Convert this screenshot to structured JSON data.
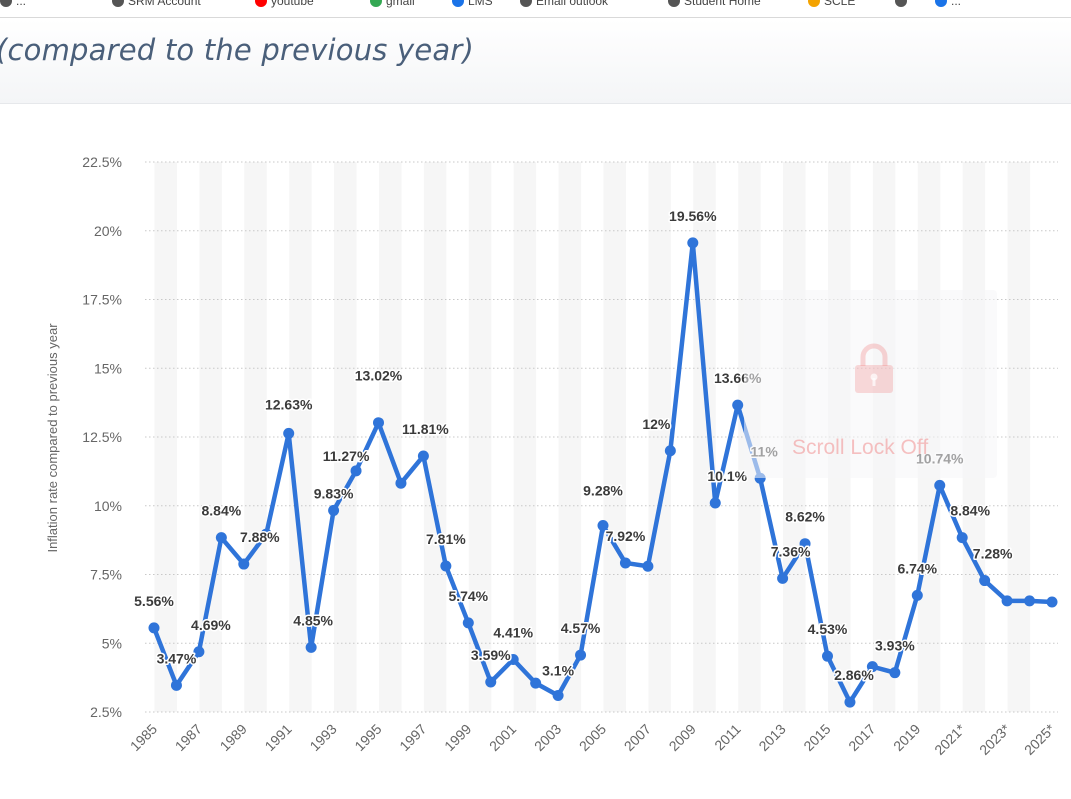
{
  "browser": {
    "bookmarks": [
      {
        "label": "...",
        "icon": "globe-icon",
        "color": "#555555"
      },
      {
        "label": "SRM Account",
        "icon": "account-icon",
        "color": "#555555"
      },
      {
        "label": "youtube",
        "icon": "youtube-icon",
        "color": "#ff0000"
      },
      {
        "label": "gmail",
        "icon": "gmail-icon",
        "color": "#34a853"
      },
      {
        "label": "LMS",
        "icon": "link-icon",
        "color": "#1a73e8"
      },
      {
        "label": "Email outlook",
        "icon": "globe-icon",
        "color": "#555555"
      },
      {
        "label": "Student Home",
        "icon": "globe-icon",
        "color": "#555555"
      },
      {
        "label": "SCLE",
        "icon": "puzzle-icon",
        "color": "#f4a300"
      },
      {
        "label": "",
        "icon": "globe-icon",
        "color": "#555555"
      },
      {
        "label": "...",
        "icon": "web-icon",
        "color": "#1a73e8"
      }
    ]
  },
  "page": {
    "title": "(compared to the previous year)"
  },
  "overlay": {
    "text": "Scroll Lock Off",
    "icon": "lock-icon"
  },
  "colors": {
    "line": "#2f74d9",
    "grid": "#c8c8c8",
    "band": "#f6f6f6",
    "label": "#3b3b3b",
    "tick": "#666666"
  },
  "chart_data": {
    "type": "line",
    "title": "",
    "xlabel": "",
    "ylabel": "Inflation rate compared to previous year",
    "ylim": [
      2.5,
      22.5
    ],
    "y_ticks": [
      "2.5%",
      "5%",
      "7.5%",
      "10%",
      "12.5%",
      "15%",
      "17.5%",
      "20%",
      "22.5%"
    ],
    "x_tick_labels": [
      "1985",
      "1987",
      "1989",
      "1991",
      "1993",
      "1995",
      "1997",
      "1999",
      "2001",
      "2003",
      "2005",
      "2007",
      "2009",
      "2011",
      "2013",
      "2015",
      "2017",
      "2019",
      "2021*",
      "2023*",
      "2025*"
    ],
    "grid": true,
    "legend": "none",
    "x": [
      "1985",
      "1986",
      "1987",
      "1988",
      "1989",
      "1990",
      "1991",
      "1992",
      "1993",
      "1994",
      "1995",
      "1996",
      "1997",
      "1998",
      "1999",
      "2000",
      "2001",
      "2002",
      "2003",
      "2004",
      "2005",
      "2006",
      "2007",
      "2008",
      "2009",
      "2010",
      "2011",
      "2012",
      "2013",
      "2014",
      "2015",
      "2016",
      "2017",
      "2018",
      "2019",
      "2020",
      "2021*",
      "2022*",
      "2023*",
      "2024*",
      "2025*"
    ],
    "values": [
      5.56,
      3.47,
      4.69,
      8.84,
      7.88,
      8.97,
      12.63,
      4.85,
      9.83,
      11.27,
      13.02,
      10.82,
      11.81,
      7.81,
      5.74,
      3.59,
      4.41,
      3.55,
      3.1,
      4.57,
      9.28,
      7.92,
      7.8,
      12.0,
      19.56,
      10.1,
      13.66,
      11.0,
      7.36,
      8.62,
      4.53,
      2.86,
      4.15,
      3.93,
      6.74,
      10.74,
      8.84,
      7.28,
      6.54,
      6.54,
      6.5
    ],
    "data_labels": [
      "5.56%",
      "3.47%",
      "4.69%",
      "8.84%",
      "7.88%",
      "",
      "12.63%",
      "4.85%",
      "9.83%",
      "11.27%",
      "13.02%",
      "",
      "11.81%",
      "7.81%",
      "5.74%",
      "3.59%",
      "4.41%",
      "",
      "3.1%",
      "4.57%",
      "9.28%",
      "7.92%",
      "",
      "12%",
      "19.56%",
      "10.1%",
      "13.66%",
      "11%",
      "7.36%",
      "8.62%",
      "4.53%",
      "2.86%",
      "",
      "3.93%",
      "6.74%",
      "10.74%",
      "8.84%",
      "7.28%",
      "",
      "",
      ""
    ]
  }
}
